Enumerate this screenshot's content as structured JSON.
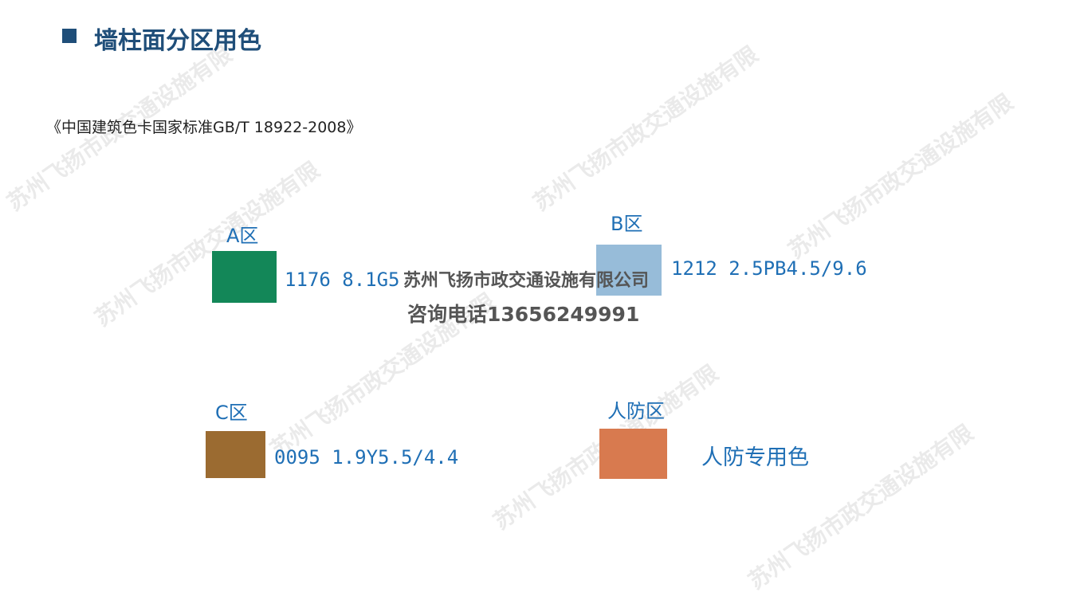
{
  "header": {
    "title": "墙柱面分区用色",
    "subtitle": "《中国建筑色卡国家标准GB/T 18922-2008》"
  },
  "zones": [
    {
      "label": "A区",
      "code": "1176 8.1G5",
      "color": "#138758"
    },
    {
      "label": "B区",
      "code": "1212 2.5PB4.5/9.6",
      "color": "#97bcd9"
    },
    {
      "label": "C区",
      "code": "0095 1.9Y5.5/4.4",
      "color": "#9b6b31"
    },
    {
      "label": "人防区",
      "code": "人防专用色",
      "color": "#d87a4f"
    }
  ],
  "watermark": {
    "company": "苏州飞扬市政交通设施有限公司",
    "phone": "咨询电话13656249991",
    "diagonal": "苏州飞扬市政交通设施有限"
  }
}
